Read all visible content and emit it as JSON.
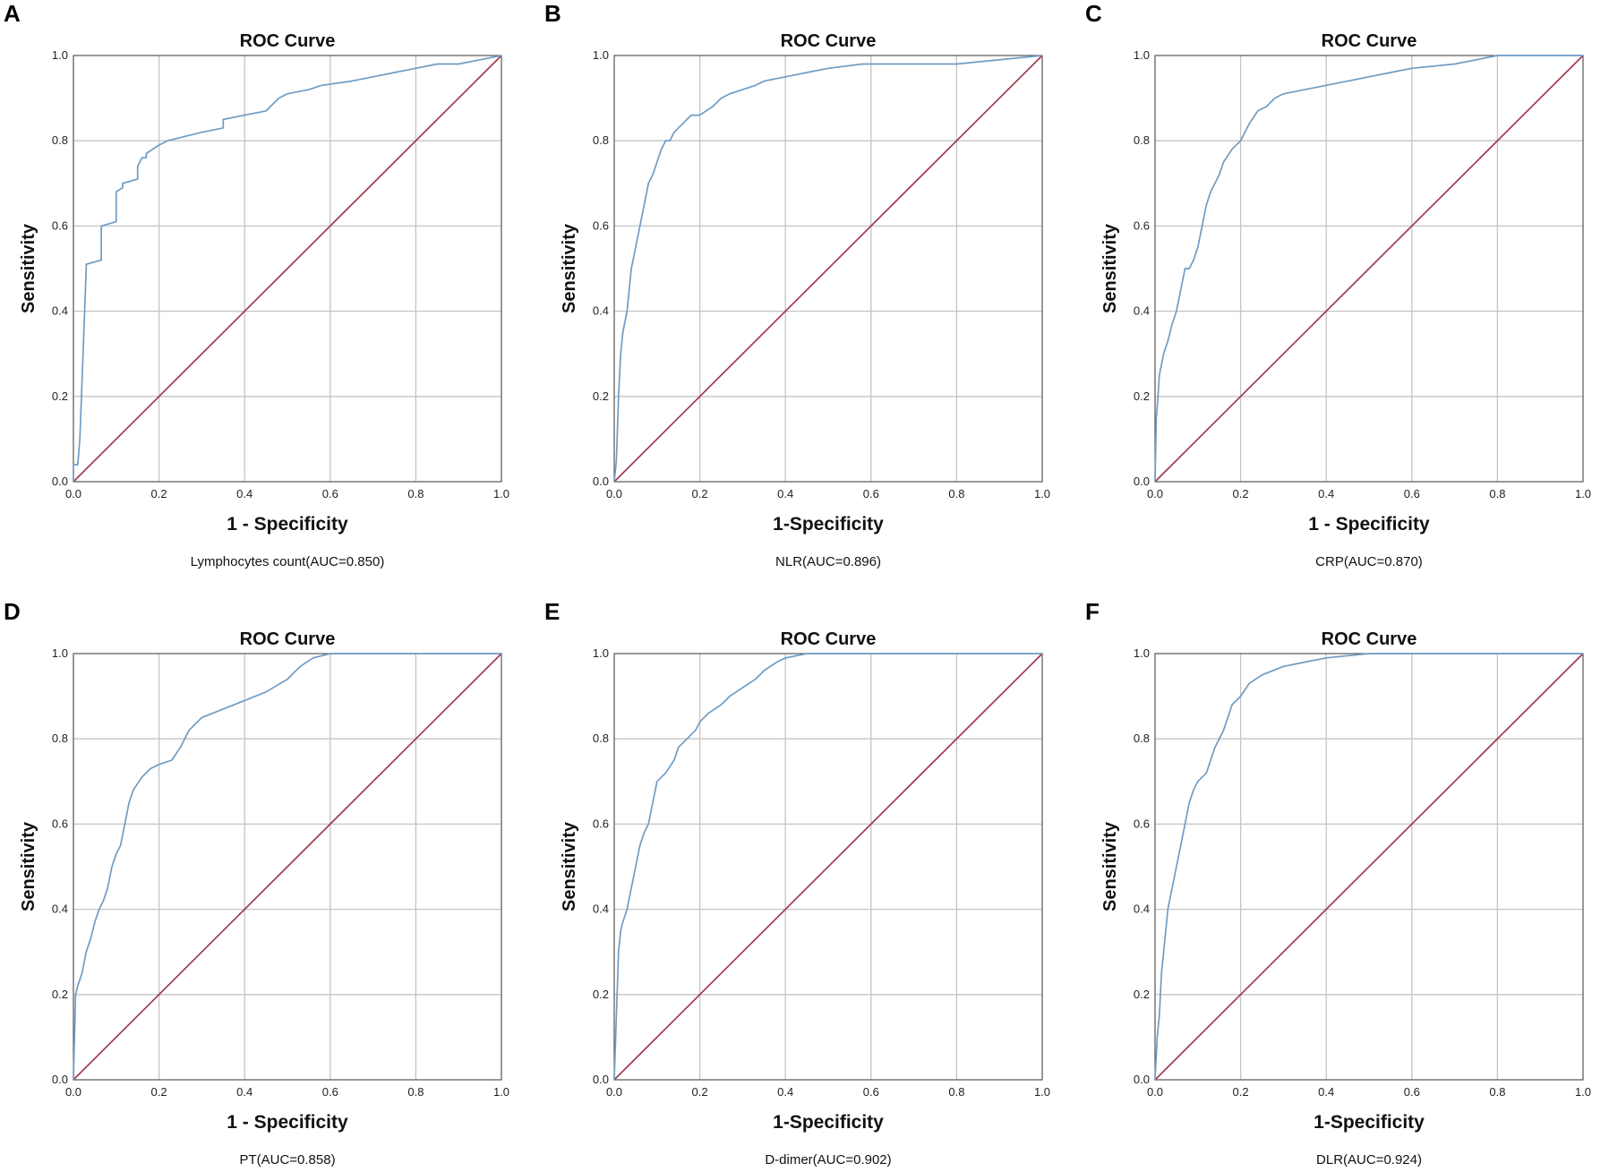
{
  "figure": {
    "panels": [
      {
        "letter": "A",
        "title": "ROC Curve",
        "xlabel": "1 - Specificity",
        "ylabel": "Sensitivity",
        "caption": "Lymphocytes count(AUC=0.850)"
      },
      {
        "letter": "B",
        "title": "ROC Curve",
        "xlabel": "1-Specificity",
        "ylabel": "Sensitivity",
        "caption": "NLR(AUC=0.896)"
      },
      {
        "letter": "C",
        "title": "ROC Curve",
        "xlabel": "1 - Specificity",
        "ylabel": "Sensitivity",
        "caption": "CRP(AUC=0.870)"
      },
      {
        "letter": "D",
        "title": "ROC Curve",
        "xlabel": "1 - Specificity",
        "ylabel": "Sensitivity",
        "caption": "PT(AUC=0.858)"
      },
      {
        "letter": "E",
        "title": "ROC Curve",
        "xlabel": "1-Specificity",
        "ylabel": "Sensitivity",
        "caption": "D-dimer(AUC=0.902)"
      },
      {
        "letter": "F",
        "title": "ROC Curve",
        "xlabel": "1-Specificity",
        "ylabel": "Sensitivity",
        "caption": "DLR(AUC=0.924)"
      }
    ],
    "tick_labels": [
      "0.0",
      "0.2",
      "0.4",
      "0.6",
      "0.8",
      "1.0"
    ]
  },
  "colors": {
    "roc_curve": "#6f9cc4",
    "reference_line": "#a23a4e",
    "grid": "#c4c4c4"
  },
  "chart_data": [
    {
      "type": "line",
      "panel": "A",
      "title": "ROC Curve",
      "xlabel": "1 - Specificity",
      "ylabel": "Sensitivity",
      "xlim": [
        0,
        1
      ],
      "ylim": [
        0,
        1
      ],
      "grid": true,
      "auc": 0.85,
      "series": [
        {
          "name": "Lymphocytes count",
          "x": [
            0,
            0,
            0.01,
            0.015,
            0.015,
            0.03,
            0.03,
            0.065,
            0.065,
            0.1,
            0.1,
            0.115,
            0.115,
            0.15,
            0.15,
            0.16,
            0.17,
            0.17,
            0.2,
            0.22,
            0.3,
            0.35,
            0.35,
            0.4,
            0.45,
            0.47,
            0.48,
            0.5,
            0.55,
            0.58,
            0.65,
            0.7,
            0.75,
            0.8,
            0.85,
            0.9,
            0.95,
            1.0
          ],
          "y": [
            0,
            0.04,
            0.04,
            0.1,
            0.1,
            0.5,
            0.51,
            0.52,
            0.6,
            0.61,
            0.68,
            0.69,
            0.7,
            0.71,
            0.74,
            0.76,
            0.76,
            0.77,
            0.79,
            0.8,
            0.82,
            0.83,
            0.85,
            0.86,
            0.87,
            0.89,
            0.9,
            0.91,
            0.92,
            0.93,
            0.94,
            0.95,
            0.96,
            0.97,
            0.98,
            0.98,
            0.99,
            1.0
          ]
        },
        {
          "name": "Reference Line",
          "x": [
            0,
            1
          ],
          "y": [
            0,
            1
          ]
        }
      ]
    },
    {
      "type": "line",
      "panel": "B",
      "title": "ROC Curve",
      "xlabel": "1-Specificity",
      "ylabel": "Sensitivity",
      "xlim": [
        0,
        1
      ],
      "ylim": [
        0,
        1
      ],
      "grid": true,
      "auc": 0.896,
      "series": [
        {
          "name": "NLR",
          "x": [
            0,
            0.005,
            0.01,
            0.015,
            0.02,
            0.03,
            0.035,
            0.04,
            0.05,
            0.06,
            0.07,
            0.08,
            0.09,
            0.1,
            0.11,
            0.12,
            0.13,
            0.14,
            0.16,
            0.18,
            0.2,
            0.23,
            0.25,
            0.27,
            0.3,
            0.33,
            0.35,
            0.4,
            0.45,
            0.5,
            0.58,
            0.6,
            0.8,
            1.0
          ],
          "y": [
            0,
            0.05,
            0.2,
            0.3,
            0.35,
            0.4,
            0.45,
            0.5,
            0.55,
            0.6,
            0.65,
            0.7,
            0.72,
            0.75,
            0.78,
            0.8,
            0.8,
            0.82,
            0.84,
            0.86,
            0.86,
            0.88,
            0.9,
            0.91,
            0.92,
            0.93,
            0.94,
            0.95,
            0.96,
            0.97,
            0.98,
            0.98,
            0.98,
            1.0
          ]
        },
        {
          "name": "Reference Line",
          "x": [
            0,
            1
          ],
          "y": [
            0,
            1
          ]
        }
      ]
    },
    {
      "type": "line",
      "panel": "C",
      "title": "ROC Curve",
      "xlabel": "1 - Specificity",
      "ylabel": "Sensitivity",
      "xlim": [
        0,
        1
      ],
      "ylim": [
        0,
        1
      ],
      "grid": true,
      "auc": 0.87,
      "series": [
        {
          "name": "CRP",
          "x": [
            0,
            0.003,
            0.007,
            0.01,
            0.02,
            0.03,
            0.04,
            0.05,
            0.06,
            0.07,
            0.08,
            0.09,
            0.1,
            0.11,
            0.12,
            0.13,
            0.14,
            0.15,
            0.16,
            0.18,
            0.2,
            0.22,
            0.24,
            0.26,
            0.28,
            0.3,
            0.35,
            0.4,
            0.45,
            0.5,
            0.55,
            0.6,
            0.7,
            0.75,
            0.8,
            1.0
          ],
          "y": [
            0,
            0.15,
            0.2,
            0.25,
            0.3,
            0.33,
            0.37,
            0.4,
            0.45,
            0.5,
            0.5,
            0.52,
            0.55,
            0.6,
            0.65,
            0.68,
            0.7,
            0.72,
            0.75,
            0.78,
            0.8,
            0.84,
            0.87,
            0.88,
            0.9,
            0.91,
            0.92,
            0.93,
            0.94,
            0.95,
            0.96,
            0.97,
            0.98,
            0.99,
            1.0,
            1.0
          ]
        },
        {
          "name": "Reference Line",
          "x": [
            0,
            1
          ],
          "y": [
            0,
            1
          ]
        }
      ]
    },
    {
      "type": "line",
      "panel": "D",
      "title": "ROC Curve",
      "xlabel": "1 - Specificity",
      "ylabel": "Sensitivity",
      "xlim": [
        0,
        1
      ],
      "ylim": [
        0,
        1
      ],
      "grid": true,
      "auc": 0.858,
      "series": [
        {
          "name": "PT",
          "x": [
            0,
            0.005,
            0.01,
            0.02,
            0.03,
            0.04,
            0.05,
            0.06,
            0.07,
            0.08,
            0.09,
            0.1,
            0.11,
            0.12,
            0.13,
            0.14,
            0.16,
            0.18,
            0.2,
            0.23,
            0.25,
            0.27,
            0.3,
            0.35,
            0.4,
            0.45,
            0.5,
            0.53,
            0.56,
            0.6,
            0.8,
            1.0
          ],
          "y": [
            0,
            0.2,
            0.22,
            0.25,
            0.3,
            0.33,
            0.37,
            0.4,
            0.42,
            0.45,
            0.5,
            0.53,
            0.55,
            0.6,
            0.65,
            0.68,
            0.71,
            0.73,
            0.74,
            0.75,
            0.78,
            0.82,
            0.85,
            0.87,
            0.89,
            0.91,
            0.94,
            0.97,
            0.99,
            1.0,
            1.0,
            1.0
          ]
        },
        {
          "name": "Reference Line",
          "x": [
            0,
            1
          ],
          "y": [
            0,
            1
          ]
        }
      ]
    },
    {
      "type": "line",
      "panel": "E",
      "title": "ROC Curve",
      "xlabel": "1-Specificity",
      "ylabel": "Sensitivity",
      "xlim": [
        0,
        1
      ],
      "ylim": [
        0,
        1
      ],
      "grid": true,
      "auc": 0.902,
      "series": [
        {
          "name": "D-dimer",
          "x": [
            0,
            0.005,
            0.01,
            0.015,
            0.02,
            0.03,
            0.04,
            0.05,
            0.06,
            0.07,
            0.08,
            0.09,
            0.1,
            0.12,
            0.14,
            0.15,
            0.17,
            0.19,
            0.2,
            0.22,
            0.25,
            0.27,
            0.3,
            0.33,
            0.35,
            0.38,
            0.4,
            0.45,
            0.5,
            0.6,
            0.8,
            1.0
          ],
          "y": [
            0,
            0.15,
            0.3,
            0.35,
            0.37,
            0.4,
            0.45,
            0.5,
            0.55,
            0.58,
            0.6,
            0.65,
            0.7,
            0.72,
            0.75,
            0.78,
            0.8,
            0.82,
            0.84,
            0.86,
            0.88,
            0.9,
            0.92,
            0.94,
            0.96,
            0.98,
            0.99,
            1.0,
            1.0,
            1.0,
            1.0,
            1.0
          ]
        },
        {
          "name": "Reference Line",
          "x": [
            0,
            1
          ],
          "y": [
            0,
            1
          ]
        }
      ]
    },
    {
      "type": "line",
      "panel": "F",
      "title": "ROC Curve",
      "xlabel": "1-Specificity",
      "ylabel": "Sensitivity",
      "xlim": [
        0,
        1
      ],
      "ylim": [
        0,
        1
      ],
      "grid": true,
      "auc": 0.924,
      "series": [
        {
          "name": "DLR",
          "x": [
            0,
            0.005,
            0.01,
            0.015,
            0.02,
            0.025,
            0.03,
            0.04,
            0.05,
            0.06,
            0.07,
            0.08,
            0.09,
            0.1,
            0.12,
            0.13,
            0.14,
            0.15,
            0.16,
            0.17,
            0.18,
            0.2,
            0.22,
            0.25,
            0.3,
            0.35,
            0.4,
            0.5,
            0.6,
            0.8,
            1.0
          ],
          "y": [
            0,
            0.1,
            0.15,
            0.25,
            0.3,
            0.35,
            0.4,
            0.45,
            0.5,
            0.55,
            0.6,
            0.65,
            0.68,
            0.7,
            0.72,
            0.75,
            0.78,
            0.8,
            0.82,
            0.85,
            0.88,
            0.9,
            0.93,
            0.95,
            0.97,
            0.98,
            0.99,
            1.0,
            1.0,
            1.0,
            1.0
          ]
        },
        {
          "name": "Reference Line",
          "x": [
            0,
            1
          ],
          "y": [
            0,
            1
          ]
        }
      ]
    }
  ]
}
